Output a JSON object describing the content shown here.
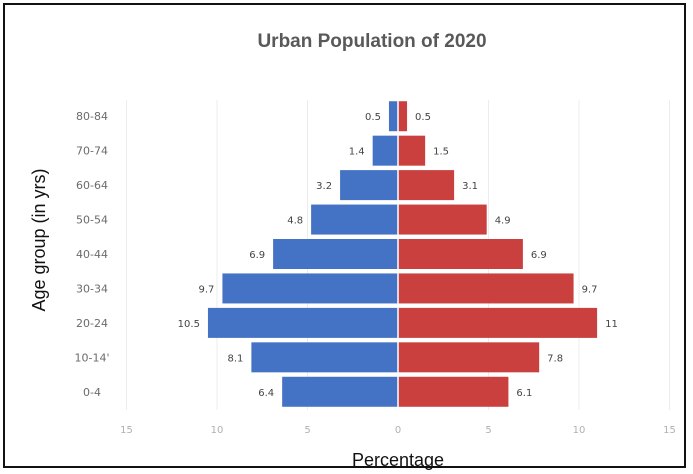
{
  "chart_data": {
    "type": "bar",
    "orientation": "horizontal",
    "layout": "population-pyramid",
    "title": "Urban Population of 2020",
    "xlabel": "Percentage",
    "ylabel": "Age group (in yrs)",
    "categories": [
      "0-4",
      "10-14'",
      "20-24",
      "30-34",
      "40-44",
      "50-54",
      "60-64",
      "70-74",
      "80-84"
    ],
    "series": [
      {
        "side": "left",
        "color": "#4472c4",
        "values": [
          6.4,
          8.1,
          10.5,
          9.7,
          6.9,
          4.8,
          3.2,
          1.4,
          0.5
        ]
      },
      {
        "side": "right",
        "color": "#c9403f",
        "values": [
          6.1,
          7.8,
          11,
          9.7,
          6.9,
          4.9,
          3.1,
          1.5,
          0.5
        ]
      }
    ],
    "xlim": [
      -15,
      15
    ],
    "xticks": [
      -15,
      -10,
      -5,
      0,
      5,
      10,
      15
    ],
    "xtick_labels": [
      "15",
      "10",
      "5",
      "0",
      "5",
      "10",
      "15"
    ],
    "grid": true,
    "legend": "none"
  }
}
